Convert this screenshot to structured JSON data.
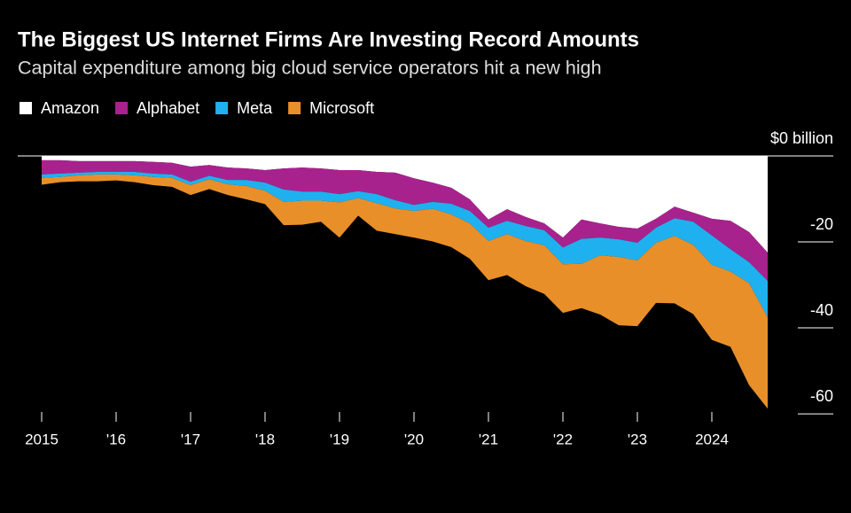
{
  "chart_data": {
    "type": "stacked-area",
    "title": "The Biggest US Internet Firms Are Investing Record Amounts",
    "subtitle": "Capital expenditure among big cloud service operators hit a new high",
    "x": [
      2015,
      2015.25,
      2015.5,
      2015.75,
      2016,
      2016.25,
      2016.5,
      2016.75,
      2017,
      2017.25,
      2017.5,
      2017.75,
      2018,
      2018.25,
      2018.5,
      2018.75,
      2019,
      2019.25,
      2019.5,
      2019.75,
      2020,
      2020.25,
      2020.5,
      2020.75,
      2021,
      2021.25,
      2021.5,
      2021.75,
      2022,
      2022.25,
      2022.5,
      2022.75,
      2023,
      2023.25,
      2023.5,
      2023.75,
      2024,
      2024.25,
      2024.5,
      2024.75
    ],
    "series": [
      {
        "name": "Amazon",
        "color": "#ffffff",
        "values": [
          -1.0,
          -1.0,
          -1.2,
          -1.2,
          -1.2,
          -1.2,
          -1.4,
          -1.6,
          -2.5,
          -2.1,
          -2.7,
          -2.9,
          -3.3,
          -2.9,
          -2.7,
          -2.9,
          -3.3,
          -3.3,
          -3.7,
          -3.9,
          -5.2,
          -6.2,
          -7.4,
          -10.1,
          -14.8,
          -12.4,
          -14.2,
          -15.7,
          -19.0,
          -14.8,
          -15.7,
          -16.5,
          -16.9,
          -14.6,
          -11.8,
          -13.2,
          -14.6,
          -15.1,
          -17.7,
          -22.5
        ]
      },
      {
        "name": "Alphabet",
        "color": "#a8228e",
        "values": [
          -3.3,
          -3.1,
          -2.7,
          -2.5,
          -2.5,
          -2.5,
          -2.7,
          -2.7,
          -3.5,
          -2.5,
          -2.9,
          -2.7,
          -2.9,
          -4.9,
          -5.6,
          -5.4,
          -5.6,
          -4.9,
          -5.2,
          -6.4,
          -6.2,
          -4.5,
          -3.7,
          -2.7,
          -1.9,
          -2.7,
          -2.1,
          -1.6,
          -2.3,
          -4.5,
          -3.3,
          -2.9,
          -3.3,
          -2.1,
          -2.7,
          -2.1,
          -3.9,
          -6.6,
          -7.0,
          -6.6
        ]
      },
      {
        "name": "Meta",
        "color": "#1fb1ef",
        "values": [
          -0.8,
          -0.8,
          -0.6,
          -0.6,
          -0.6,
          -0.8,
          -0.8,
          -0.8,
          -0.8,
          -0.8,
          -1.0,
          -1.4,
          -1.9,
          -2.9,
          -2.1,
          -2.1,
          -1.9,
          -1.6,
          -2.1,
          -1.9,
          -1.4,
          -1.6,
          -2.5,
          -2.9,
          -3.1,
          -3.1,
          -3.5,
          -3.5,
          -3.9,
          -5.8,
          -4.1,
          -4.1,
          -4.1,
          -3.5,
          -4.1,
          -5.4,
          -6.8,
          -5.2,
          -4.9,
          -8.5
        ]
      },
      {
        "name": "Microsoft",
        "color": "#e98f2a",
        "values": [
          -1.6,
          -1.2,
          -1.4,
          -1.6,
          -1.4,
          -1.6,
          -1.9,
          -2.1,
          -2.3,
          -2.3,
          -2.5,
          -3.1,
          -3.1,
          -5.4,
          -5.6,
          -4.9,
          -8.2,
          -4.1,
          -6.4,
          -6.0,
          -6.2,
          -7.6,
          -7.6,
          -8.2,
          -9.1,
          -9.5,
          -10.5,
          -11.3,
          -11.3,
          -10.3,
          -13.8,
          -15.9,
          -15.3,
          -14.0,
          -15.7,
          -16.1,
          -17.5,
          -17.5,
          -23.7,
          -21.2
        ]
      }
    ],
    "xlim": [
      2015,
      2024.75
    ],
    "xticks": [
      2015,
      {
        "value": 2016,
        "label": "'16"
      },
      {
        "value": 2017,
        "label": "'17"
      },
      {
        "value": 2018,
        "label": "'18"
      },
      {
        "value": 2019,
        "label": "'19"
      },
      {
        "value": 2020,
        "label": "'20"
      },
      {
        "value": 2021,
        "label": "'21"
      },
      {
        "value": 2022,
        "label": "'22"
      },
      {
        "value": 2023,
        "label": "'23"
      },
      2024
    ],
    "ylim": [
      0,
      -60.6
    ],
    "yticks": [
      {
        "value": 0,
        "label": "$0 billion"
      },
      -20,
      -40,
      -60
    ]
  }
}
